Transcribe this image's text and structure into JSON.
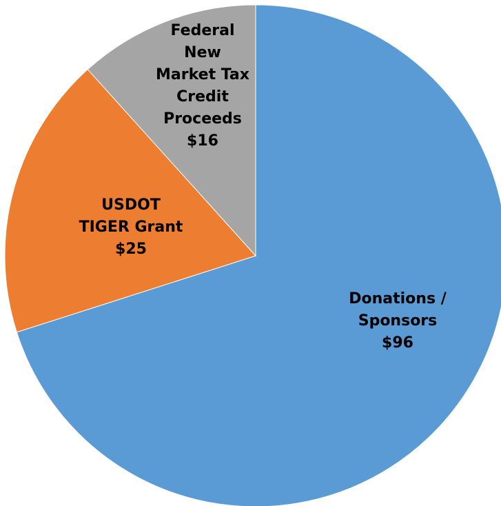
{
  "chart_data": {
    "type": "pie",
    "title": "",
    "unit": "$",
    "slices": [
      {
        "label_lines": [
          "Donations /",
          "Sponsors"
        ],
        "value": 96,
        "value_label": "$96",
        "color": "#5B9BD5"
      },
      {
        "label_lines": [
          "USDOT",
          "TIGER Grant"
        ],
        "value": 25,
        "value_label": "$25",
        "color": "#ED7D31"
      },
      {
        "label_lines": [
          "Federal",
          "New",
          "Market Tax",
          "Credit",
          "Proceeds"
        ],
        "value": 16,
        "value_label": "$16",
        "color": "#A5A5A5"
      }
    ],
    "start": "12 o'clock",
    "direction": "clockwise",
    "legend": "none"
  }
}
